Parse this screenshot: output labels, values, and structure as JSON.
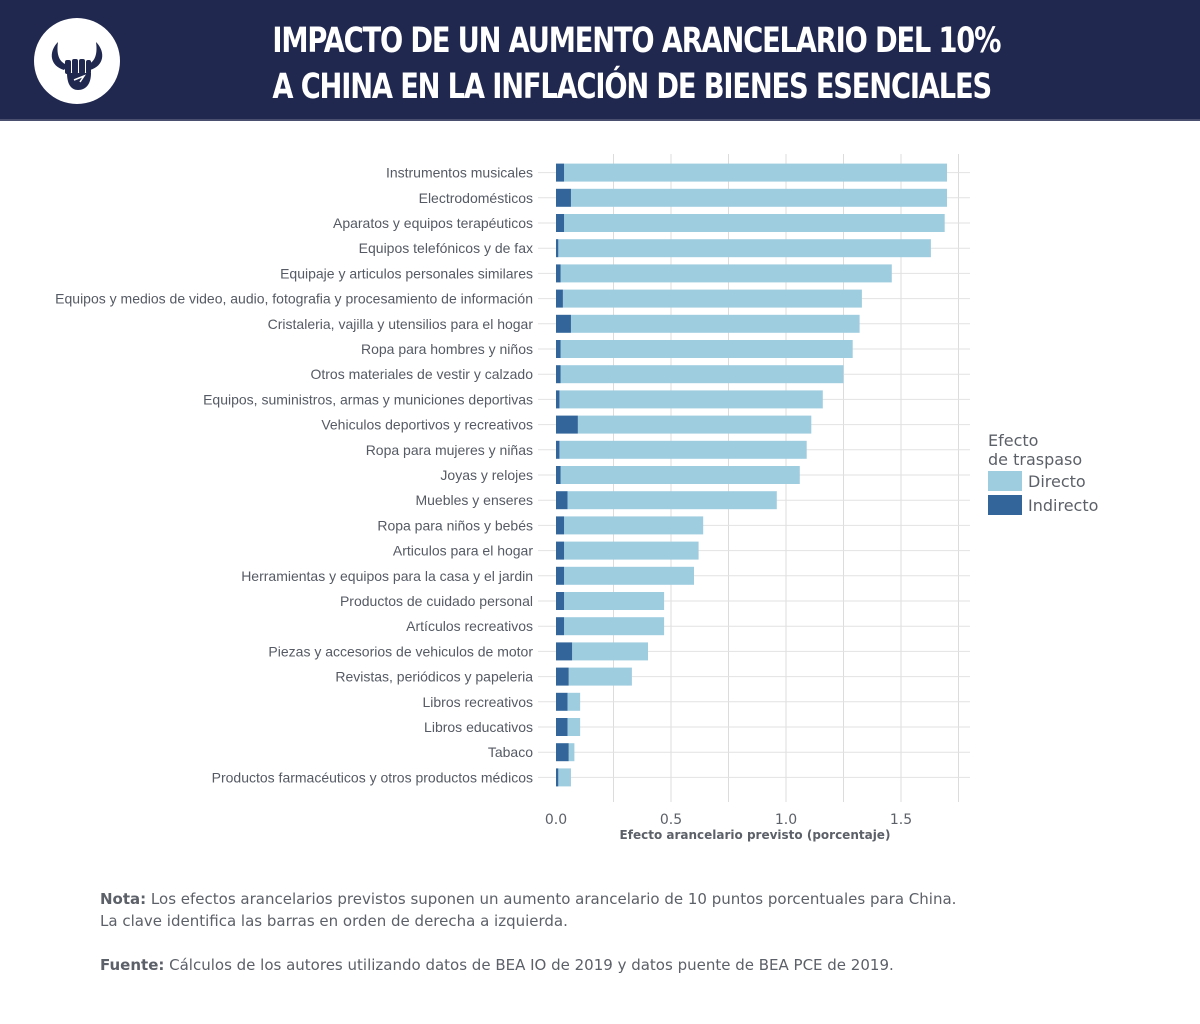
{
  "header": {
    "title_line1": "IMPACTO DE UN AUMENTO ARANCELARIO DEL 10%",
    "title_line2": "A CHINA EN LA INFLACIÓN DE BIENES ESENCIALES",
    "logo_icon": "bull-fist-logo-icon",
    "background_color": "#20284f"
  },
  "chart_data": {
    "type": "bar",
    "orientation": "horizontal",
    "stacked": true,
    "title": "IMPACTO DE UN AUMENTO ARANCELARIO DEL 10% A CHINA EN LA INFLACIÓN DE BIENES ESENCIALES",
    "xlabel": "Efecto arancelario previsto (porcentaje)",
    "ylabel": "",
    "xlim": [
      0,
      1.78
    ],
    "xticks": [
      0.0,
      0.5,
      1.0,
      1.5
    ],
    "xtick_labels": [
      "0.0",
      "0.5",
      "1.0",
      "1.5"
    ],
    "grid": true,
    "categories": [
      "Instrumentos musicales",
      "Electrodomésticos",
      "Aparatos y equipos terapéuticos",
      "Equipos telefónicos y de fax",
      "Equipaje y articulos personales similares",
      "Equipos y medios de video, audio, fotografia y procesamiento de información",
      "Cristaleria, vajilla y utensilios para el hogar",
      "Ropa para hombres y niños",
      "Otros materiales de vestir y calzado",
      "Equipos, suministros, armas y municiones deportivas",
      "Vehiculos deportivos y recreativos",
      "Ropa para mujeres y niñas",
      "Joyas y relojes",
      "Muebles y enseres",
      "Ropa para niños y bebés",
      "Articulos para el hogar",
      "Herramientas y equipos para la casa y el jardin",
      "Productos de cuidado personal",
      "Artículos recreativos",
      "Piezas y accesorios de vehiculos de motor",
      "Revistas, periódicos y papeleria",
      "Libros recreativos",
      "Libros educativos",
      "Tabaco",
      "Productos farmacéuticos y otros productos médicos"
    ],
    "series": [
      {
        "name": "Indirecto",
        "color": "#33659a",
        "values": [
          0.035,
          0.065,
          0.035,
          0.01,
          0.02,
          0.03,
          0.065,
          0.02,
          0.02,
          0.015,
          0.095,
          0.015,
          0.02,
          0.05,
          0.035,
          0.035,
          0.035,
          0.035,
          0.035,
          0.07,
          0.055,
          0.05,
          0.05,
          0.055,
          0.01
        ]
      },
      {
        "name": "Directo",
        "color": "#9fcde0",
        "values": [
          1.665,
          1.635,
          1.655,
          1.62,
          1.44,
          1.3,
          1.255,
          1.27,
          1.23,
          1.145,
          1.015,
          1.075,
          1.04,
          0.91,
          0.605,
          0.585,
          0.565,
          0.435,
          0.435,
          0.33,
          0.275,
          0.055,
          0.055,
          0.025,
          0.055
        ]
      }
    ],
    "legend": {
      "title_line1": "Efecto",
      "title_line2": "de traspaso",
      "placement": "right",
      "entries": [
        "Directo",
        "Indirecto"
      ]
    }
  },
  "notes": {
    "nota_label": "Nota:",
    "nota_text": " Los efectos arancelarios previstos suponen un aumento arancelario de 10 puntos porcentuales para China.",
    "nota_text2": "La clave identifica las barras en orden de derecha a izquierda.",
    "fuente_label": "Fuente:",
    "fuente_text": " Cálculos de los autores utilizando datos de BEA IO de 2019 y datos puente de BEA PCE de 2019."
  }
}
